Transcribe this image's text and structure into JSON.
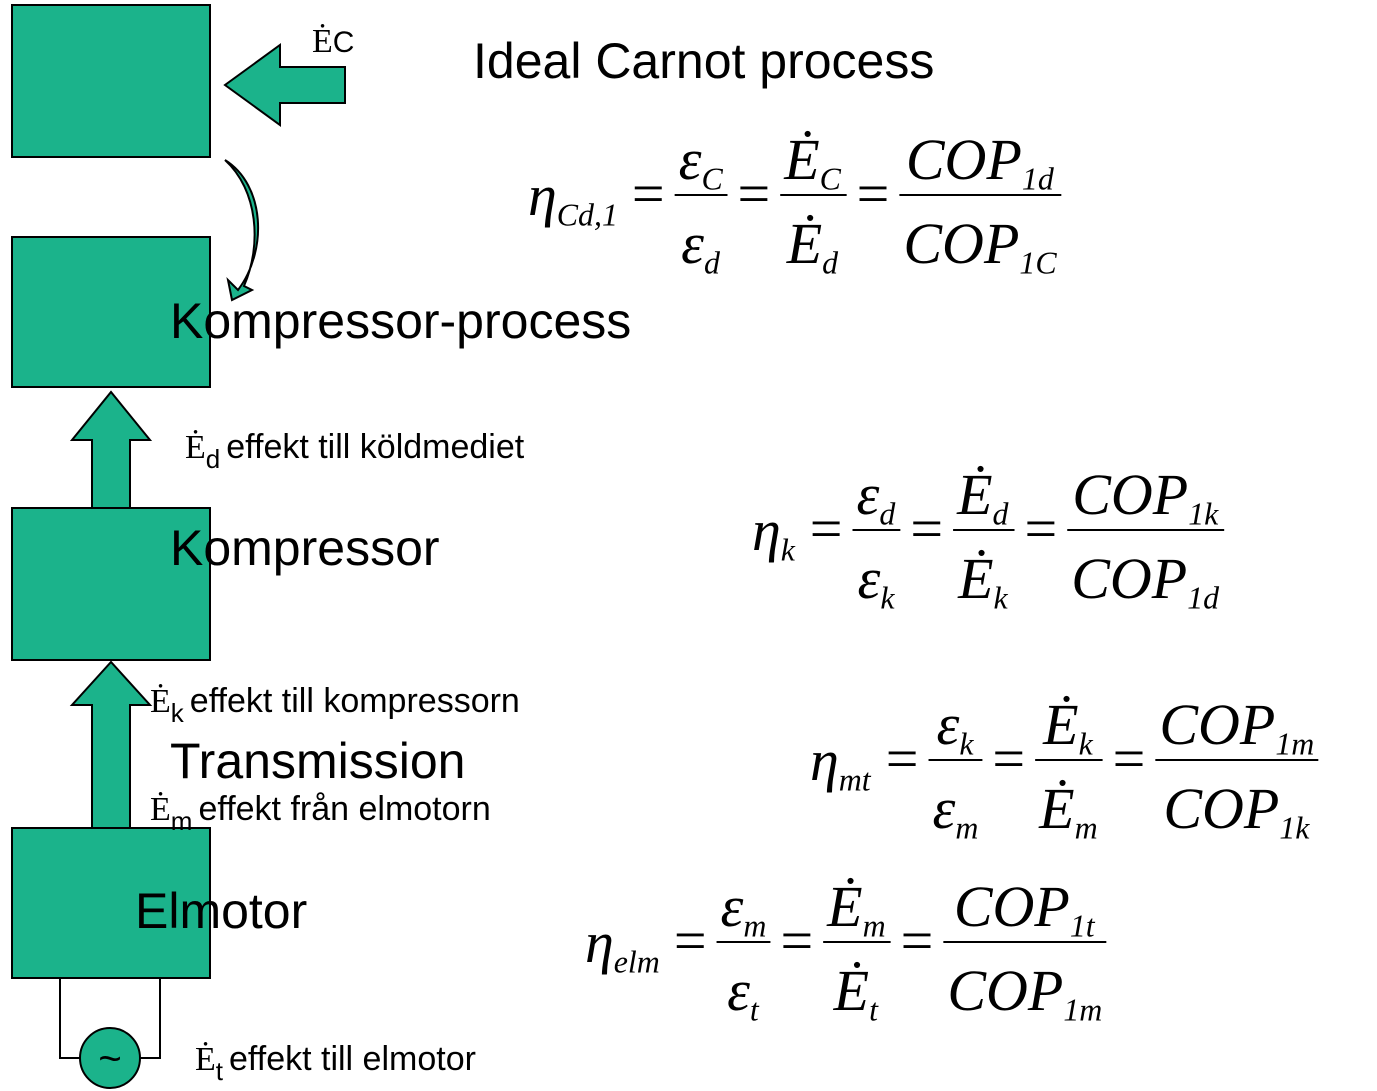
{
  "title": "Ideal Carnot process",
  "blocks": [
    {
      "label": "Kompressor-process"
    },
    {
      "label": "Kompressor"
    },
    {
      "label": "Transmission"
    },
    {
      "label": "Elmotor"
    }
  ],
  "carnot_flow": {
    "sym": "Ė",
    "sub": "C"
  },
  "flows": [
    {
      "sym": "Ė",
      "sub": "d",
      "text": "effekt till köldmediet"
    },
    {
      "sym": "Ė",
      "sub": "k",
      "text": "effekt till kompressorn"
    },
    {
      "sym": "Ė",
      "sub": "m",
      "text": "effekt från elmotorn"
    },
    {
      "sym": "Ė",
      "sub": "t",
      "text": "effekt till elmotor"
    }
  ],
  "source_symbol": "~",
  "equations": [
    {
      "lhs": {
        "sym": "η",
        "sub": "Cd,1"
      },
      "operator": "=",
      "terms": [
        {
          "num": {
            "sym": "ε",
            "sub": "C"
          },
          "den": {
            "sym": "ε",
            "sub": "d"
          }
        },
        {
          "num": {
            "sym": "Ė",
            "sub": "C"
          },
          "den": {
            "sym": "Ė",
            "sub": "d"
          }
        },
        {
          "num": {
            "sym": "COP",
            "sub": "1d"
          },
          "den": {
            "sym": "COP",
            "sub": "1C"
          }
        }
      ]
    },
    {
      "lhs": {
        "sym": "η",
        "sub": "k"
      },
      "operator": "=",
      "terms": [
        {
          "num": {
            "sym": "ε",
            "sub": "d"
          },
          "den": {
            "sym": "ε",
            "sub": "k"
          }
        },
        {
          "num": {
            "sym": "Ė",
            "sub": "d"
          },
          "den": {
            "sym": "Ė",
            "sub": "k"
          }
        },
        {
          "num": {
            "sym": "COP",
            "sub": "1k"
          },
          "den": {
            "sym": "COP",
            "sub": "1d"
          }
        }
      ]
    },
    {
      "lhs": {
        "sym": "η",
        "sub": "mt"
      },
      "operator": "=",
      "terms": [
        {
          "num": {
            "sym": "ε",
            "sub": "k"
          },
          "den": {
            "sym": "ε",
            "sub": "m"
          }
        },
        {
          "num": {
            "sym": "Ė",
            "sub": "k"
          },
          "den": {
            "sym": "Ė",
            "sub": "m"
          }
        },
        {
          "num": {
            "sym": "COP",
            "sub": "1m"
          },
          "den": {
            "sym": "COP",
            "sub": "1k"
          }
        }
      ]
    },
    {
      "lhs": {
        "sym": "η",
        "sub": "elm"
      },
      "operator": "=",
      "terms": [
        {
          "num": {
            "sym": "ε",
            "sub": "m"
          },
          "den": {
            "sym": "ε",
            "sub": "t"
          }
        },
        {
          "num": {
            "sym": "Ė",
            "sub": "m"
          },
          "den": {
            "sym": "Ė",
            "sub": "t"
          }
        },
        {
          "num": {
            "sym": "COP",
            "sub": "1t"
          },
          "den": {
            "sym": "COP",
            "sub": "1m"
          }
        }
      ]
    }
  ]
}
